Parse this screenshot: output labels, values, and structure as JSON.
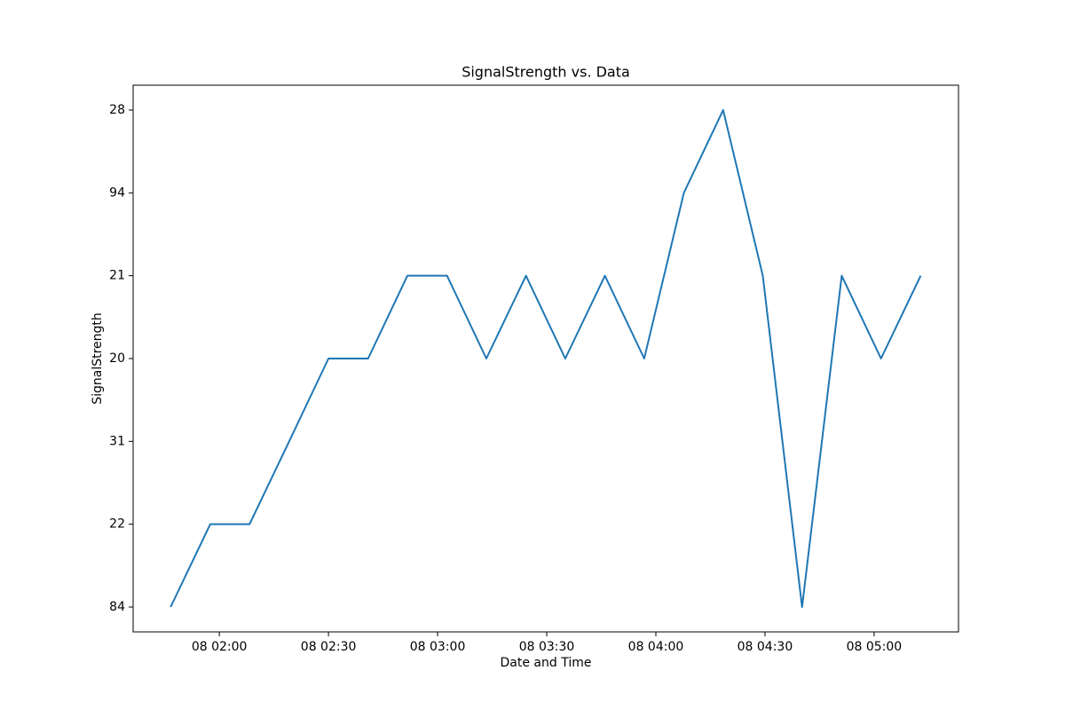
{
  "chart_data": {
    "type": "line",
    "title": "SignalStrength vs. Data",
    "x_label": "Date and Time",
    "y_label": "SignalStrength",
    "x": [
      106.6,
      117.5,
      128.3,
      139.2,
      150,
      160.9,
      171.7,
      182.6,
      193.4,
      204.3,
      215.1,
      226,
      236.8,
      247.7,
      258.5,
      269.4,
      280.2,
      291.1,
      301.9,
      312.8
    ],
    "series": [
      {
        "color": "#1f77b4",
        "values": [
          0,
          1,
          1,
          2,
          3,
          3,
          4,
          4,
          3,
          4,
          3,
          4,
          3,
          5,
          6,
          4,
          0,
          4,
          3,
          4
        ]
      }
    ],
    "xlim": [
      96.3,
      323.2
    ],
    "xticks": [
      {
        "value": 120,
        "label": "08 02:00"
      },
      {
        "value": 150,
        "label": "08 02:30"
      },
      {
        "value": 180,
        "label": "08 03:00"
      },
      {
        "value": 210,
        "label": "08 03:30"
      },
      {
        "value": 240,
        "label": "08 04:00"
      },
      {
        "value": 270,
        "label": "08 04:30"
      },
      {
        "value": 300,
        "label": "08 05:00"
      }
    ],
    "ylim": [
      -0.3,
      6.3
    ],
    "yticks": [
      {
        "value": 0,
        "label": "84"
      },
      {
        "value": 1,
        "label": "22"
      },
      {
        "value": 2,
        "label": "31"
      },
      {
        "value": 3,
        "label": "20"
      },
      {
        "value": 4,
        "label": "21"
      },
      {
        "value": 5,
        "label": "94"
      },
      {
        "value": 6,
        "label": "28"
      }
    ],
    "grid": false
  }
}
